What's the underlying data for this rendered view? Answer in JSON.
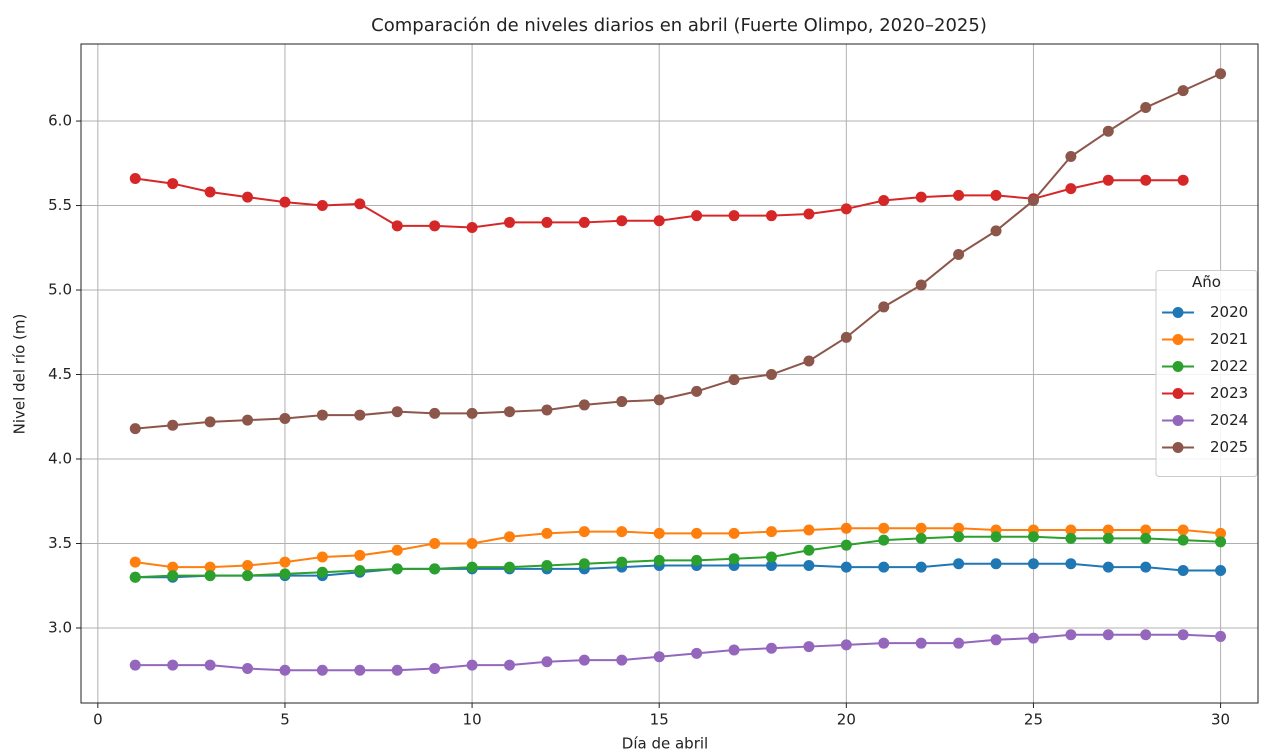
{
  "chart_data": {
    "type": "line",
    "title": "Comparación de niveles diarios en abril (Fuerte Olimpo, 2020–2025)",
    "x_label": "Día de abril",
    "y_label": "Nivel del río (m)",
    "legend_title": "Año",
    "legend_position": "right",
    "grid": true,
    "x": [
      1,
      2,
      3,
      4,
      5,
      6,
      7,
      8,
      9,
      10,
      11,
      12,
      13,
      14,
      15,
      16,
      17,
      18,
      19,
      20,
      21,
      22,
      23,
      24,
      25,
      26,
      27,
      28,
      29,
      30
    ],
    "xlim": [
      -0.45,
      31
    ],
    "xticks": [
      0,
      5,
      10,
      15,
      20,
      25,
      30
    ],
    "ylim": [
      2.556,
      6.456
    ],
    "yticks": [
      {
        "value": 3.0,
        "label": "3.0"
      },
      3.5,
      {
        "value": 4.0,
        "label": "4.0"
      },
      4.5,
      {
        "value": 5.0,
        "label": "5.0"
      },
      5.5,
      {
        "value": 6.0,
        "label": "6.0"
      }
    ],
    "series": [
      {
        "name": "2020",
        "color": "#1f77b4",
        "values": [
          3.3,
          3.3,
          3.31,
          3.31,
          3.31,
          3.31,
          3.33,
          3.35,
          3.35,
          3.35,
          3.35,
          3.35,
          3.35,
          3.36,
          3.37,
          3.37,
          3.37,
          3.37,
          3.37,
          3.36,
          3.36,
          3.36,
          3.38,
          3.38,
          3.38,
          3.38,
          3.36,
          3.36,
          3.34,
          3.34
        ]
      },
      {
        "name": "2021",
        "color": "#ff7f0e",
        "values": [
          3.39,
          3.36,
          3.36,
          3.37,
          3.39,
          3.42,
          3.43,
          3.46,
          3.5,
          3.5,
          3.54,
          3.56,
          3.57,
          3.57,
          3.56,
          3.56,
          3.56,
          3.57,
          3.58,
          3.59,
          3.59,
          3.59,
          3.59,
          3.58,
          3.58,
          3.58,
          3.58,
          3.58,
          3.58,
          3.56
        ]
      },
      {
        "name": "2022",
        "color": "#2ca02c",
        "values": [
          3.3,
          3.31,
          3.31,
          3.31,
          3.32,
          3.33,
          3.34,
          3.35,
          3.35,
          3.36,
          3.36,
          3.37,
          3.38,
          3.39,
          3.4,
          3.4,
          3.41,
          3.42,
          3.46,
          3.49,
          3.52,
          3.53,
          3.54,
          3.54,
          3.54,
          3.53,
          3.53,
          3.53,
          3.52,
          3.51
        ]
      },
      {
        "name": "2023",
        "color": "#d62728",
        "values": [
          5.66,
          5.63,
          5.58,
          5.55,
          5.52,
          5.5,
          5.51,
          5.38,
          5.38,
          5.37,
          5.4,
          5.4,
          5.4,
          5.41,
          5.41,
          5.44,
          5.44,
          5.44,
          5.45,
          5.48,
          5.53,
          5.55,
          5.56,
          5.56,
          5.54,
          5.6,
          5.65,
          5.65,
          5.65,
          null
        ]
      },
      {
        "name": "2024",
        "color": "#9467bd",
        "values": [
          2.78,
          2.78,
          2.78,
          2.76,
          2.75,
          2.75,
          2.75,
          2.75,
          2.76,
          2.78,
          2.78,
          2.8,
          2.81,
          2.81,
          2.83,
          2.85,
          2.87,
          2.88,
          2.89,
          2.9,
          2.91,
          2.91,
          2.91,
          2.93,
          2.94,
          2.96,
          2.96,
          2.96,
          2.96,
          2.95
        ]
      },
      {
        "name": "2025",
        "color": "#8c564b",
        "values": [
          4.18,
          4.2,
          4.22,
          4.23,
          4.24,
          4.26,
          4.26,
          4.28,
          4.27,
          4.27,
          4.28,
          4.29,
          4.32,
          4.34,
          4.35,
          4.4,
          4.47,
          4.5,
          4.58,
          4.72,
          4.9,
          5.03,
          5.21,
          5.35,
          5.53,
          5.79,
          5.94,
          6.08,
          6.18,
          6.28
        ]
      }
    ]
  }
}
